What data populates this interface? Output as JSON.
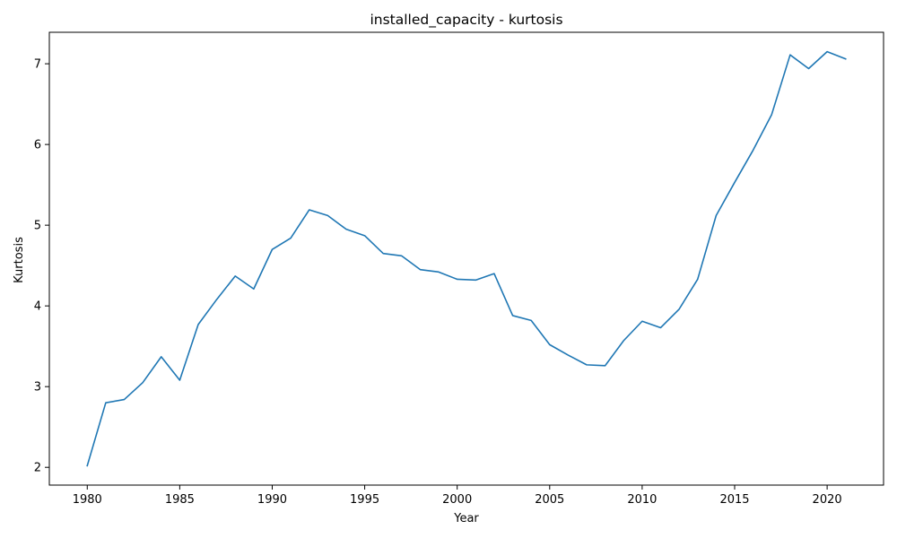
{
  "chart_data": {
    "type": "line",
    "title": "installed_capacity - kurtosis",
    "xlabel": "Year",
    "ylabel": "Kurtosis",
    "xlim": [
      1977.95,
      2023.05
    ],
    "ylim": [
      1.78,
      7.39
    ],
    "xticks": [
      1980,
      1985,
      1990,
      1995,
      2000,
      2005,
      2010,
      2015,
      2020
    ],
    "yticks": [
      2,
      3,
      4,
      5,
      6,
      7
    ],
    "grid": false,
    "series": [
      {
        "color": "#1f77b4",
        "x": [
          1980,
          1981,
          1982,
          1983,
          1984,
          1985,
          1986,
          1987,
          1988,
          1989,
          1990,
          1991,
          1992,
          1993,
          1994,
          1995,
          1996,
          1997,
          1998,
          1999,
          2000,
          2001,
          2002,
          2003,
          2004,
          2005,
          2006,
          2007,
          2008,
          2009,
          2010,
          2011,
          2012,
          2013,
          2014,
          2015,
          2016,
          2017,
          2018,
          2019,
          2020,
          2021
        ],
        "values": [
          2.02,
          2.8,
          2.84,
          3.05,
          3.37,
          3.08,
          3.77,
          4.08,
          4.37,
          4.21,
          4.7,
          4.84,
          5.19,
          5.12,
          4.95,
          4.87,
          4.65,
          4.62,
          4.45,
          4.42,
          4.33,
          4.32,
          4.4,
          3.88,
          3.82,
          3.52,
          3.39,
          3.27,
          3.26,
          3.57,
          3.81,
          3.73,
          3.96,
          4.33,
          5.12,
          5.53,
          5.93,
          6.37,
          7.11,
          6.94,
          7.15,
          7.06
        ]
      }
    ]
  }
}
